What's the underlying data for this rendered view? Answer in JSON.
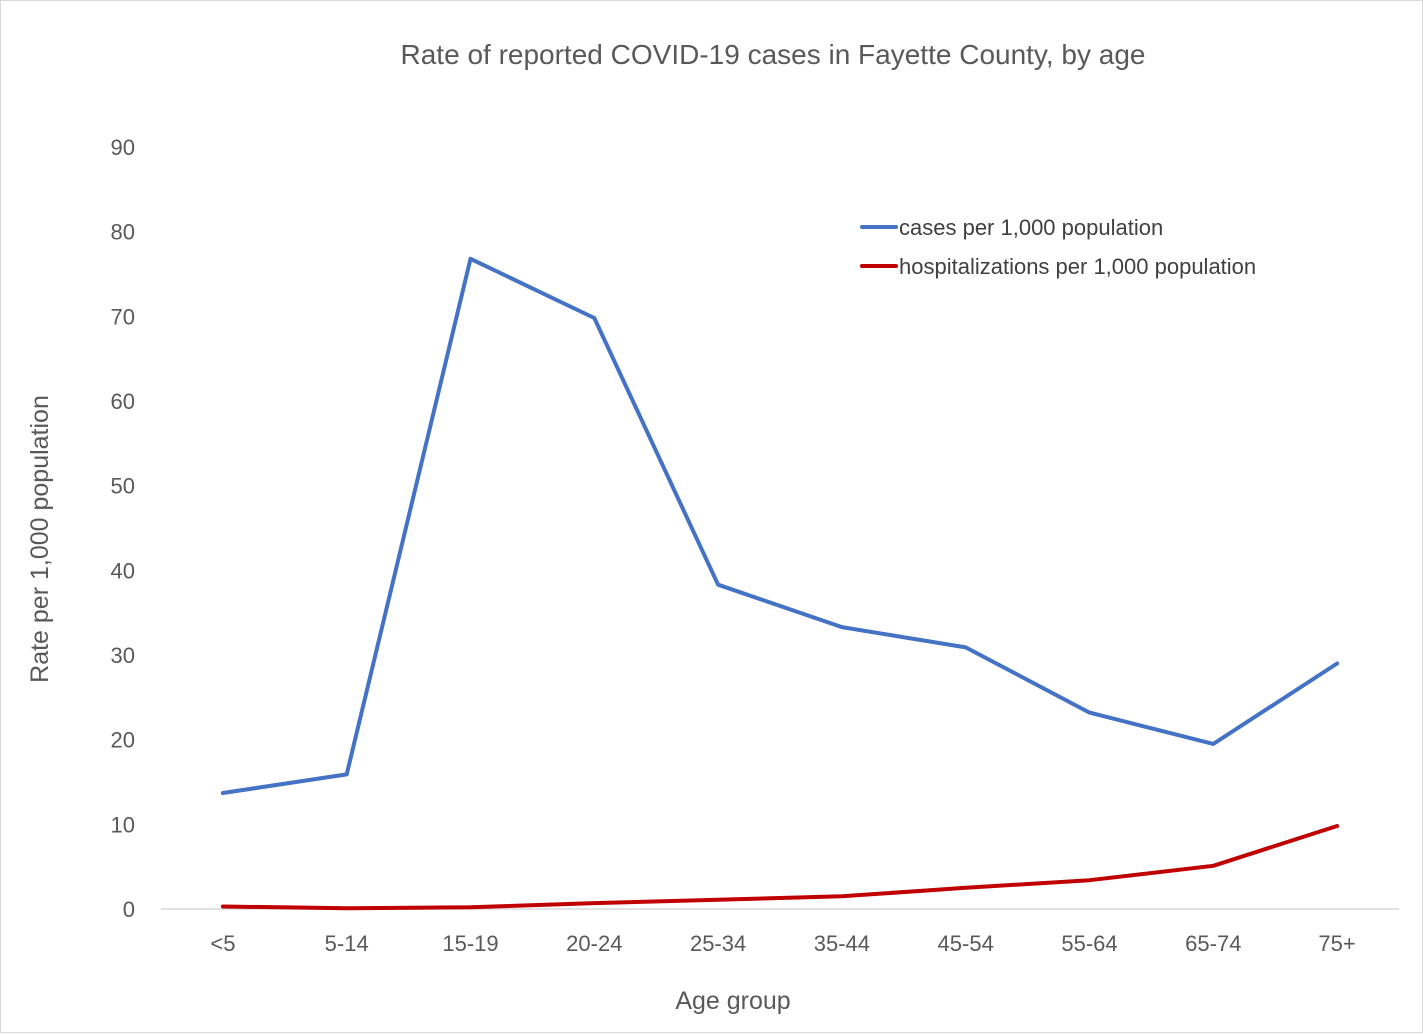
{
  "chart_data": {
    "type": "line",
    "title": "Rate of reported COVID-19 cases in Fayette County, by age",
    "xlabel": "Age group",
    "ylabel": "Rate per 1,000 population",
    "categories": [
      "<5",
      "5-14",
      "15-19",
      "20-24",
      "25-34",
      "35-44",
      "45-54",
      "55-64",
      "65-74",
      "75+"
    ],
    "ylim": [
      0,
      90
    ],
    "yticks": [
      0,
      10,
      20,
      30,
      40,
      50,
      60,
      70,
      80,
      90
    ],
    "grid": false,
    "legend_position": "top-right",
    "series": [
      {
        "name": "cases per 1,000 population",
        "color": "#4472c4",
        "values": [
          13.7,
          15.9,
          76.8,
          69.8,
          38.3,
          33.3,
          30.9,
          23.2,
          19.5,
          29.0
        ]
      },
      {
        "name": "hospitalizations per 1,000 population",
        "color": "#c00000",
        "values": [
          0.3,
          0.1,
          0.2,
          0.7,
          1.1,
          1.5,
          2.5,
          3.4,
          5.1,
          9.8
        ]
      }
    ]
  }
}
